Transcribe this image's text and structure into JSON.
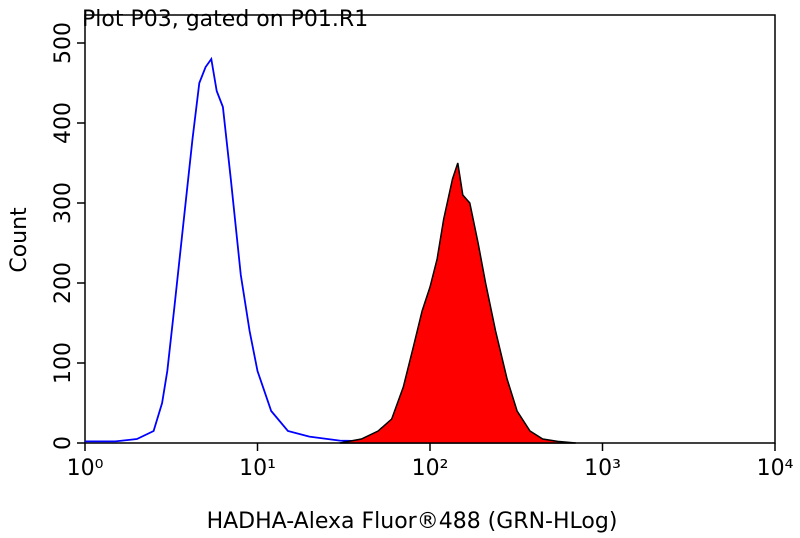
{
  "chart_data": {
    "type": "histogram-overlay",
    "title": "Plot P03, gated on P01.R1",
    "xlabel": "HADHA-Alexa Fluor®488 (GRN-HLog)",
    "ylabel": "Count",
    "xscale": "log",
    "xlim": [
      1,
      10000
    ],
    "xticks": [
      {
        "value": 1,
        "label": "10⁰"
      },
      {
        "value": 10,
        "label": "10¹"
      },
      {
        "value": 100,
        "label": "10²"
      },
      {
        "value": 1000,
        "label": "10³"
      },
      {
        "value": 10000,
        "label": "10⁴"
      }
    ],
    "ylim": [
      0,
      535
    ],
    "yticks": [
      0,
      100,
      200,
      300,
      400,
      500
    ],
    "series": [
      {
        "color": "#0000ff",
        "filled": false,
        "x": [
          1,
          1.5,
          2,
          2.5,
          2.8,
          3,
          3.3,
          3.7,
          4.2,
          4.6,
          5,
          5.4,
          5.8,
          6.3,
          7,
          8,
          9,
          10,
          12,
          15,
          20,
          30,
          50
        ],
        "values": [
          2,
          2,
          5,
          15,
          50,
          90,
          170,
          270,
          380,
          450,
          470,
          480,
          440,
          420,
          330,
          210,
          140,
          90,
          40,
          15,
          8,
          3,
          2
        ]
      },
      {
        "color": "#ff0000",
        "filled": true,
        "x": [
          30,
          40,
          50,
          60,
          70,
          80,
          90,
          100,
          110,
          120,
          135,
          145,
          155,
          170,
          190,
          210,
          240,
          280,
          320,
          380,
          450,
          550,
          700
        ],
        "values": [
          0,
          5,
          15,
          30,
          70,
          120,
          165,
          195,
          230,
          280,
          330,
          350,
          310,
          300,
          250,
          200,
          140,
          80,
          40,
          15,
          5,
          2,
          0
        ]
      }
    ]
  }
}
